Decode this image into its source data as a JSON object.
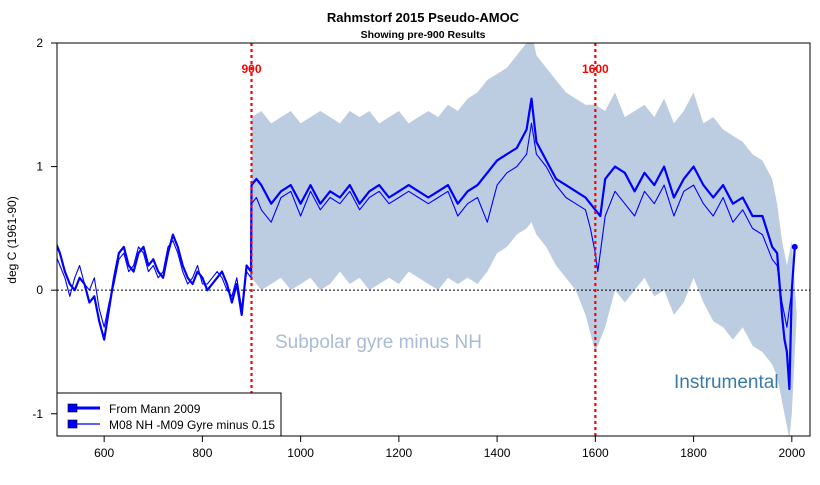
{
  "chart_data": {
    "type": "line",
    "title": "Rahmstorf 2015 Pseudo-AMOC",
    "subtitle": "Showing pre-900 Results",
    "xlabel": "",
    "ylabel": "deg C (1961-90)",
    "xlim": [
      504,
      2037
    ],
    "ylim": [
      -1.18,
      2
    ],
    "x_ticks": [
      600,
      800,
      1000,
      1200,
      1400,
      1600,
      1800,
      2000
    ],
    "y_ticks": [
      -1,
      0,
      1,
      2
    ],
    "grid": false,
    "legend_placement": "bottom-left",
    "vlines": [
      {
        "x": 900,
        "label": "900",
        "color": "#ff0000"
      },
      {
        "x": 1600,
        "label": "1600",
        "color": "#ff0000"
      }
    ],
    "hline": {
      "y": 0,
      "style": "dotted",
      "color": "#000000"
    },
    "annotations": [
      {
        "text": "Subpolar gyre minus NH",
        "color": "#a9bcd6"
      },
      {
        "text": "Instrumental",
        "color": "#3a7aaa"
      }
    ],
    "band": {
      "color": "#b0c4dc",
      "x": [
        900,
        920,
        940,
        960,
        980,
        1000,
        1020,
        1040,
        1060,
        1080,
        1100,
        1120,
        1140,
        1160,
        1180,
        1200,
        1220,
        1240,
        1260,
        1280,
        1300,
        1320,
        1340,
        1360,
        1380,
        1400,
        1420,
        1440,
        1460,
        1470,
        1480,
        1500,
        1520,
        1540,
        1560,
        1580,
        1600,
        1620,
        1640,
        1660,
        1680,
        1700,
        1720,
        1740,
        1760,
        1780,
        1800,
        1820,
        1840,
        1860,
        1880,
        1900,
        1920,
        1940,
        1960,
        1970,
        1980,
        1990,
        1995,
        2000,
        2010
      ],
      "upper": [
        1.4,
        1.45,
        1.35,
        1.4,
        1.45,
        1.35,
        1.4,
        1.45,
        1.4,
        1.35,
        1.45,
        1.4,
        1.45,
        1.35,
        1.4,
        1.45,
        1.35,
        1.4,
        1.45,
        1.4,
        1.5,
        1.45,
        1.55,
        1.6,
        1.7,
        1.75,
        1.8,
        1.9,
        2.0,
        2.1,
        1.9,
        1.8,
        1.7,
        1.6,
        1.55,
        1.5,
        1.5,
        1.45,
        1.6,
        1.4,
        1.45,
        1.5,
        1.4,
        1.55,
        1.35,
        1.45,
        1.6,
        1.35,
        1.4,
        1.3,
        1.25,
        1.2,
        1.1,
        1.05,
        0.9,
        0.7,
        0.4,
        0.2,
        0.3,
        0.4,
        -0.2
      ],
      "lower": [
        0.1,
        0.0,
        0.05,
        0.1,
        0.0,
        0.05,
        0.1,
        0.0,
        0.05,
        0.15,
        0.05,
        0.1,
        0.0,
        0.05,
        0.1,
        0.05,
        0.15,
        0.1,
        0.05,
        0.0,
        0.1,
        0.05,
        0.1,
        0.05,
        0.15,
        0.3,
        0.35,
        0.45,
        0.5,
        0.55,
        0.45,
        0.35,
        0.2,
        0.1,
        0.0,
        -0.2,
        -0.5,
        -0.3,
        0.0,
        -0.1,
        0.0,
        0.1,
        -0.05,
        0.0,
        -0.2,
        -0.1,
        0.1,
        -0.1,
        -0.25,
        -0.3,
        -0.4,
        -0.3,
        -0.45,
        -0.5,
        -0.6,
        -0.7,
        -0.9,
        -1.1,
        -1.2,
        -1.0,
        -0.2
      ]
    },
    "series": [
      {
        "name": "From Mann 2009",
        "color": "#0000ff",
        "x": [
          500,
          510,
          520,
          530,
          540,
          550,
          560,
          570,
          580,
          590,
          600,
          610,
          620,
          630,
          640,
          650,
          660,
          670,
          680,
          690,
          700,
          710,
          720,
          730,
          740,
          750,
          760,
          770,
          780,
          790,
          800,
          810,
          820,
          830,
          840,
          850,
          860,
          870,
          880,
          890,
          899,
          900,
          910,
          920,
          940,
          960,
          980,
          1000,
          1020,
          1040,
          1060,
          1080,
          1100,
          1120,
          1140,
          1160,
          1180,
          1200,
          1220,
          1240,
          1260,
          1280,
          1300,
          1320,
          1340,
          1360,
          1380,
          1400,
          1420,
          1440,
          1460,
          1470,
          1480,
          1500,
          1520,
          1540,
          1560,
          1580,
          1590,
          1600,
          1610,
          1620,
          1640,
          1660,
          1680,
          1700,
          1720,
          1740,
          1760,
          1780,
          1800,
          1820,
          1840,
          1860,
          1880,
          1900,
          1920,
          1940,
          1960,
          1970,
          1980,
          1985,
          1990,
          1995,
          2000,
          2006
        ],
        "y": [
          0.4,
          0.3,
          0.15,
          0.05,
          0.0,
          0.1,
          0.05,
          -0.1,
          -0.05,
          -0.25,
          -0.4,
          -0.15,
          0.1,
          0.3,
          0.35,
          0.2,
          0.15,
          0.3,
          0.35,
          0.2,
          0.25,
          0.15,
          0.1,
          0.3,
          0.45,
          0.35,
          0.2,
          0.1,
          0.05,
          0.15,
          0.1,
          0.0,
          0.05,
          0.1,
          0.15,
          0.05,
          -0.1,
          0.05,
          -0.2,
          0.2,
          0.15,
          0.85,
          0.9,
          0.85,
          0.7,
          0.8,
          0.85,
          0.7,
          0.85,
          0.7,
          0.8,
          0.75,
          0.85,
          0.7,
          0.8,
          0.85,
          0.75,
          0.8,
          0.85,
          0.8,
          0.75,
          0.8,
          0.85,
          0.7,
          0.8,
          0.85,
          0.95,
          1.05,
          1.1,
          1.15,
          1.3,
          1.55,
          1.2,
          1.05,
          0.9,
          0.85,
          0.8,
          0.75,
          0.7,
          0.65,
          0.6,
          0.9,
          1.0,
          0.95,
          0.8,
          0.95,
          0.85,
          1.0,
          0.75,
          0.9,
          1.0,
          0.85,
          0.75,
          0.85,
          0.7,
          0.75,
          0.6,
          0.6,
          0.35,
          0.3,
          -0.2,
          -0.4,
          -0.5,
          -0.8,
          0.0,
          0.35
        ]
      },
      {
        "name": "M08 NH -M09 Gyre minus 0.15",
        "color": "#0000ff",
        "x": [
          500,
          510,
          520,
          530,
          540,
          550,
          560,
          570,
          580,
          590,
          600,
          610,
          620,
          630,
          640,
          650,
          660,
          670,
          680,
          690,
          700,
          710,
          720,
          730,
          740,
          750,
          760,
          770,
          780,
          790,
          800,
          810,
          820,
          830,
          840,
          850,
          860,
          870,
          880,
          890,
          899,
          900,
          910,
          920,
          940,
          960,
          980,
          1000,
          1020,
          1040,
          1060,
          1080,
          1100,
          1120,
          1140,
          1160,
          1180,
          1200,
          1220,
          1240,
          1260,
          1280,
          1300,
          1320,
          1340,
          1360,
          1380,
          1400,
          1420,
          1440,
          1460,
          1470,
          1480,
          1500,
          1520,
          1540,
          1560,
          1580,
          1590,
          1600,
          1605,
          1620,
          1640,
          1660,
          1680,
          1700,
          1720,
          1740,
          1760,
          1780,
          1800,
          1820,
          1840,
          1860,
          1880,
          1900,
          1920,
          1940,
          1960,
          1970,
          1980,
          1990,
          2000
        ],
        "y": [
          0.3,
          0.2,
          0.1,
          -0.05,
          0.1,
          0.2,
          0.05,
          0.0,
          0.1,
          -0.15,
          -0.3,
          -0.1,
          0.05,
          0.25,
          0.3,
          0.15,
          0.2,
          0.35,
          0.3,
          0.15,
          0.2,
          0.1,
          0.15,
          0.35,
          0.4,
          0.3,
          0.15,
          0.05,
          0.1,
          0.2,
          0.05,
          0.05,
          0.1,
          0.15,
          0.1,
          0.0,
          -0.05,
          0.1,
          -0.15,
          0.15,
          0.1,
          0.7,
          0.75,
          0.65,
          0.55,
          0.75,
          0.8,
          0.6,
          0.8,
          0.65,
          0.75,
          0.7,
          0.8,
          0.65,
          0.75,
          0.8,
          0.7,
          0.75,
          0.8,
          0.75,
          0.7,
          0.75,
          0.8,
          0.6,
          0.7,
          0.75,
          0.55,
          0.85,
          0.95,
          1.0,
          1.1,
          1.35,
          1.1,
          1.0,
          0.85,
          0.75,
          0.7,
          0.65,
          0.5,
          0.3,
          0.15,
          0.6,
          0.8,
          0.7,
          0.6,
          0.8,
          0.7,
          0.85,
          0.6,
          0.8,
          0.85,
          0.7,
          0.6,
          0.75,
          0.55,
          0.65,
          0.5,
          0.45,
          0.25,
          0.2,
          -0.1,
          -0.3,
          0.0
        ]
      }
    ]
  }
}
